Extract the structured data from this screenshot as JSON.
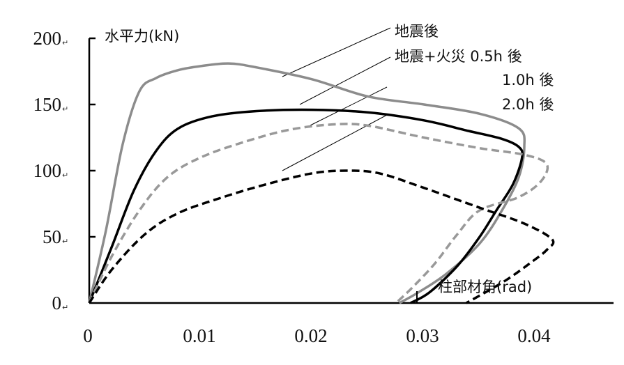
{
  "chart_data": {
    "type": "line",
    "ylabel": "水平力(kN)",
    "xlabel": "柱部材角(rad)",
    "xlim": [
      0,
      0.047
    ],
    "ylim": [
      0,
      200
    ],
    "x_ticks": [
      0,
      0.01,
      0.02,
      0.03,
      0.04
    ],
    "x_tick_labels": [
      "0",
      "0.01",
      "0.02",
      "0.03",
      "0.04"
    ],
    "y_ticks": [
      0,
      50,
      100,
      150,
      200
    ],
    "y_tick_labels": [
      "0",
      "50",
      "100",
      "150",
      "200"
    ],
    "grid": false,
    "series": [
      {
        "name": "地震後",
        "color": "#8c8c8c",
        "dash": "solid",
        "points": [
          [
            0,
            0
          ],
          [
            0.0015,
            55
          ],
          [
            0.003,
            120
          ],
          [
            0.0045,
            160
          ],
          [
            0.006,
            170
          ],
          [
            0.008,
            176
          ],
          [
            0.01,
            179
          ],
          [
            0.0125,
            181
          ],
          [
            0.015,
            178
          ],
          [
            0.02,
            169
          ],
          [
            0.025,
            156
          ],
          [
            0.03,
            150
          ],
          [
            0.035,
            143
          ],
          [
            0.0385,
            132
          ],
          [
            0.039,
            118
          ],
          [
            0.0385,
            95
          ],
          [
            0.037,
            70
          ],
          [
            0.035,
            45
          ],
          [
            0.032,
            22
          ],
          [
            0.0295,
            8
          ],
          [
            0.0278,
            0
          ]
        ]
      },
      {
        "name": "地震+火災 0.5h 後",
        "color": "#000000",
        "dash": "solid",
        "points": [
          [
            0,
            0
          ],
          [
            0.002,
            42
          ],
          [
            0.004,
            85
          ],
          [
            0.006,
            115
          ],
          [
            0.008,
            132
          ],
          [
            0.011,
            141
          ],
          [
            0.015,
            145
          ],
          [
            0.02,
            146
          ],
          [
            0.025,
            144
          ],
          [
            0.03,
            138
          ],
          [
            0.034,
            130
          ],
          [
            0.037,
            124
          ],
          [
            0.0385,
            118
          ],
          [
            0.0388,
            110
          ],
          [
            0.038,
            90
          ],
          [
            0.0365,
            70
          ],
          [
            0.035,
            50
          ],
          [
            0.033,
            28
          ],
          [
            0.0305,
            8
          ],
          [
            0.0288,
            0
          ]
        ]
      },
      {
        "name": "1.0h 後",
        "color": "#999999",
        "dash": "dashed",
        "points": [
          [
            0,
            0
          ],
          [
            0.002,
            35
          ],
          [
            0.0045,
            70
          ],
          [
            0.007,
            95
          ],
          [
            0.01,
            110
          ],
          [
            0.014,
            122
          ],
          [
            0.018,
            131
          ],
          [
            0.022,
            135
          ],
          [
            0.025,
            134
          ],
          [
            0.03,
            125
          ],
          [
            0.035,
            117
          ],
          [
            0.039,
            112
          ],
          [
            0.041,
            105
          ],
          [
            0.0405,
            92
          ],
          [
            0.0385,
            80
          ],
          [
            0.035,
            70
          ],
          [
            0.033,
            52
          ],
          [
            0.031,
            30
          ],
          [
            0.029,
            12
          ],
          [
            0.0275,
            0
          ]
        ]
      },
      {
        "name": "2.0h 後",
        "color": "#000000",
        "dash": "dashed",
        "points": [
          [
            0,
            0
          ],
          [
            0.002,
            25
          ],
          [
            0.005,
            52
          ],
          [
            0.008,
            68
          ],
          [
            0.012,
            80
          ],
          [
            0.016,
            90
          ],
          [
            0.02,
            98
          ],
          [
            0.023,
            100
          ],
          [
            0.026,
            98
          ],
          [
            0.03,
            87
          ],
          [
            0.035,
            72
          ],
          [
            0.039,
            60
          ],
          [
            0.0415,
            48
          ],
          [
            0.041,
            40
          ],
          [
            0.0395,
            30
          ],
          [
            0.0375,
            18
          ],
          [
            0.0355,
            8
          ],
          [
            0.0338,
            0
          ]
        ]
      }
    ],
    "annotations": [
      {
        "text": "地震後"
      },
      {
        "text": "地震+火災 0.5h 後"
      },
      {
        "text": "1.0h 後"
      },
      {
        "text": "2.0h 後"
      }
    ]
  }
}
